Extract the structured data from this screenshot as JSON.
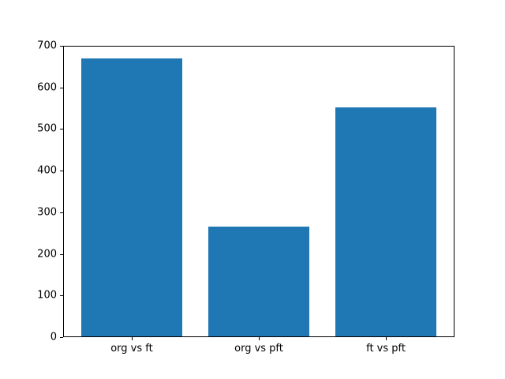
{
  "chart_data": {
    "type": "bar",
    "categories": [
      "org vs ft",
      "org vs pft",
      "ft vs pft"
    ],
    "values": [
      670,
      265,
      553
    ],
    "title": "",
    "xlabel": "",
    "ylabel": "",
    "ylim": [
      0,
      700
    ],
    "yticks": [
      0,
      100,
      200,
      300,
      400,
      500,
      600,
      700
    ],
    "bar_color": "#1f77b4",
    "bar_width_fraction": 0.8,
    "grid": false,
    "legend": null,
    "background_color": "#ffffff",
    "spine_color": "#000000",
    "tick_label_color": "#000000"
  }
}
